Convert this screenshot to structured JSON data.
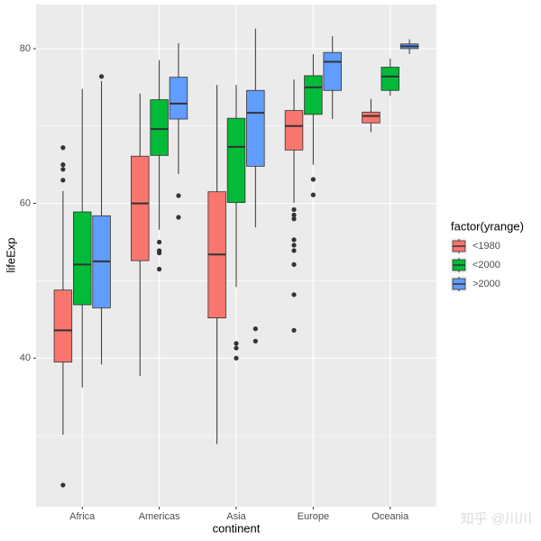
{
  "chart_data": {
    "type": "boxplot",
    "x_label": "continent",
    "y_label": "lifeExp",
    "categories": [
      "Africa",
      "Americas",
      "Asia",
      "Europe",
      "Oceania"
    ],
    "ylim": [
      20.8,
      85.7
    ],
    "yticks": [
      40,
      60,
      80
    ],
    "minor_yticks": [
      30,
      50,
      70
    ],
    "grid": true,
    "legend_title": "factor(yrange)",
    "legend_position": "right",
    "series": [
      {
        "name": "<1980",
        "color": "#F8766D",
        "boxes": [
          {
            "min": 30.1,
            "q1": 39.5,
            "median": 43.6,
            "q3": 48.8,
            "max": 61.6,
            "outliers": [
              67.2,
              65.0,
              64.4,
              63.0,
              23.6
            ]
          },
          {
            "min": 37.7,
            "q1": 52.6,
            "median": 60.0,
            "q3": 66.1,
            "max": 74.2,
            "outliers": []
          },
          {
            "min": 28.9,
            "q1": 45.2,
            "median": 53.4,
            "q3": 61.5,
            "max": 75.3,
            "outliers": []
          },
          {
            "min": 60.1,
            "q1": 66.9,
            "median": 70.0,
            "q3": 72.0,
            "max": 76.0,
            "outliers": [
              59.2,
              58.5,
              58.0,
              55.3,
              54.6,
              53.9,
              52.1,
              48.2,
              43.6
            ]
          },
          {
            "min": 69.2,
            "q1": 70.4,
            "median": 71.3,
            "q3": 71.8,
            "max": 73.5,
            "outliers": []
          }
        ]
      },
      {
        "name": "<2000",
        "color": "#00BA38",
        "boxes": [
          {
            "min": 36.2,
            "q1": 46.9,
            "median": 52.1,
            "q3": 58.9,
            "max": 74.8,
            "outliers": []
          },
          {
            "min": 56.6,
            "q1": 66.2,
            "median": 69.6,
            "q3": 73.4,
            "max": 78.5,
            "outliers": [
              55.0,
              53.9,
              53.6,
              51.5
            ]
          },
          {
            "min": 49.2,
            "q1": 60.1,
            "median": 67.3,
            "q3": 71.0,
            "max": 75.3,
            "outliers": [
              41.9,
              41.3,
              40.0
            ]
          },
          {
            "min": 65.0,
            "q1": 71.5,
            "median": 75.0,
            "q3": 76.5,
            "max": 79.3,
            "outliers": [
              63.1,
              61.1
            ]
          },
          {
            "min": 73.9,
            "q1": 74.6,
            "median": 76.4,
            "q3": 77.6,
            "max": 78.7,
            "outliers": []
          }
        ]
      },
      {
        "name": ">2000",
        "color": "#619CFF",
        "boxes": [
          {
            "min": 39.2,
            "q1": 46.5,
            "median": 52.5,
            "q3": 58.4,
            "max": 75.8,
            "outliers": [
              76.4
            ]
          },
          {
            "min": 63.8,
            "q1": 70.9,
            "median": 72.9,
            "q3": 76.3,
            "max": 80.7,
            "outliers": [
              61.0,
              58.2
            ]
          },
          {
            "min": 56.9,
            "q1": 64.8,
            "median": 71.7,
            "q3": 74.6,
            "max": 82.6,
            "outliers": [
              43.8,
              42.2
            ]
          },
          {
            "min": 70.9,
            "q1": 74.6,
            "median": 78.3,
            "q3": 79.5,
            "max": 81.6,
            "outliers": []
          },
          {
            "min": 79.3,
            "q1": 80.0,
            "median": 80.3,
            "q3": 80.6,
            "max": 81.2,
            "outliers": []
          }
        ]
      }
    ]
  },
  "watermark": "知乎 @川川"
}
